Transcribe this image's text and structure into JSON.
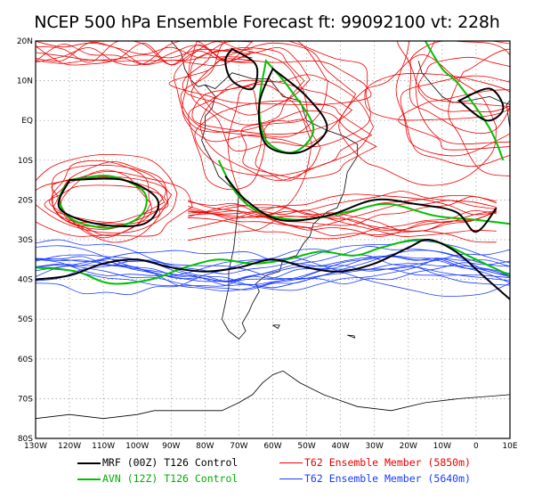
{
  "title": "NCEP 500 hPa Ensemble Forecast  ft: 99092100 vt: 228h",
  "map": {
    "lat_labels": [
      "20N",
      "10N",
      "EQ",
      "10S",
      "20S",
      "30S",
      "40S",
      "50S",
      "60S",
      "70S",
      "80S"
    ],
    "lon_labels": [
      "130W",
      "120W",
      "110W",
      "100W",
      "90W",
      "80W",
      "70W",
      "60W",
      "50W",
      "40W",
      "30W",
      "20W",
      "10W",
      "0",
      "10E"
    ],
    "frame_color": "#000000",
    "grid_color": "#999999",
    "coast_color": "#000000"
  },
  "legend": [
    {
      "label": "MRF (00Z) T126 Control",
      "color": "#000000",
      "text_color": "#000000"
    },
    {
      "label": "T62 Ensemble Member (5850m)",
      "color": "#ee0000",
      "text_color": "#ee0000"
    },
    {
      "label": "AVN (12Z) T126 Control",
      "color": "#00c000",
      "text_color": "#00b000"
    },
    {
      "label": "T62 Ensemble Member (5640m)",
      "color": "#1a3cff",
      "text_color": "#1a3cff"
    }
  ]
}
